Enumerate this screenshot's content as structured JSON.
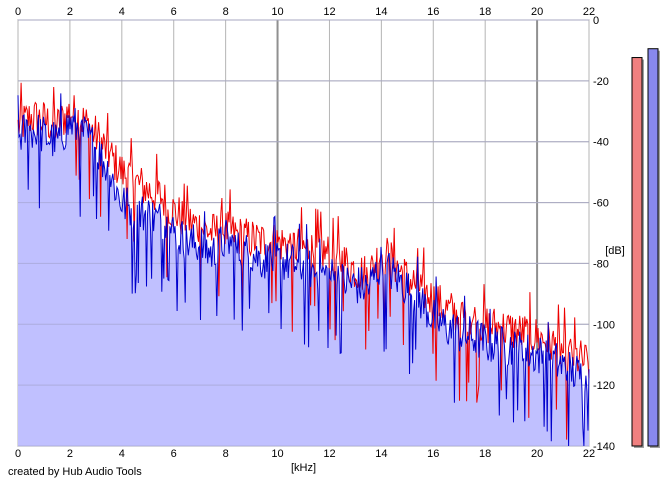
{
  "chart_data": {
    "type": "area",
    "xlabel": "[kHz]",
    "ylabel": "[dB]",
    "xlim": [
      0,
      22
    ],
    "ylim": [
      -140,
      0
    ],
    "x_ticks": [
      0,
      2,
      4,
      6,
      8,
      10,
      12,
      14,
      16,
      18,
      20,
      22
    ],
    "x_tick_labels": [
      "0",
      "2",
      "4",
      "6",
      "8",
      "10",
      "12",
      "14",
      "16",
      "18",
      "20",
      "22"
    ],
    "y_ticks": [
      0,
      -20,
      -40,
      -60,
      -80,
      -100,
      -120,
      -140
    ],
    "y_tick_labels": [
      "0",
      "-20",
      "-40",
      "-60",
      "-80",
      "-100",
      "-120",
      "-140"
    ],
    "grid": true,
    "fill_color": "#c0c0ff",
    "series": [
      {
        "color": "#ee0000",
        "x": [
          0.0,
          0.5,
          1.0,
          1.5,
          2.0,
          2.5,
          3.0,
          3.5,
          4.0,
          4.5,
          5.0,
          5.5,
          6.0,
          6.5,
          7.0,
          7.5,
          8.0,
          8.5,
          9.0,
          9.5,
          10.0,
          10.5,
          11.0,
          11.5,
          12.0,
          12.5,
          13.0,
          13.5,
          14.0,
          14.5,
          15.0,
          15.5,
          16.0,
          16.5,
          17.0,
          17.5,
          18.0,
          18.5,
          19.0,
          19.5,
          20.0,
          20.5,
          21.0,
          21.5,
          22.0
        ],
        "values": [
          -35,
          -32,
          -33,
          -35,
          -30,
          -33,
          -38,
          -44,
          -50,
          -53,
          -56,
          -58,
          -63,
          -66,
          -68,
          -70,
          -69,
          -71,
          -72,
          -73,
          -73,
          -74,
          -75,
          -76,
          -77,
          -79,
          -82,
          -84,
          -76,
          -80,
          -85,
          -88,
          -92,
          -95,
          -97,
          -98,
          -100,
          -101,
          -102,
          -103,
          -104,
          -106,
          -109,
          -111,
          -113
        ]
      },
      {
        "color": "#0000cc",
        "x": [
          0.0,
          0.5,
          1.0,
          1.5,
          2.0,
          2.5,
          3.0,
          3.5,
          4.0,
          4.5,
          5.0,
          5.5,
          6.0,
          6.5,
          7.0,
          7.5,
          8.0,
          8.5,
          9.0,
          9.5,
          10.0,
          10.5,
          11.0,
          11.5,
          12.0,
          12.5,
          13.0,
          13.5,
          14.0,
          14.5,
          15.0,
          15.5,
          16.0,
          16.5,
          17.0,
          17.5,
          18.0,
          18.5,
          19.0,
          19.5,
          20.0,
          20.5,
          21.0,
          21.5,
          22.0
        ],
        "values": [
          -38,
          -36,
          -38,
          -40,
          -34,
          -37,
          -42,
          -50,
          -60,
          -63,
          -64,
          -66,
          -70,
          -73,
          -74,
          -77,
          -72,
          -76,
          -77,
          -79,
          -79,
          -80,
          -81,
          -83,
          -84,
          -86,
          -87,
          -88,
          -80,
          -84,
          -88,
          -92,
          -98,
          -101,
          -103,
          -104,
          -106,
          -107,
          -108,
          -109,
          -110,
          -111,
          -114,
          -116,
          -118
        ]
      }
    ],
    "level_meters": [
      {
        "color": "#f08080",
        "level_db": -8
      },
      {
        "color": "#8888ee",
        "level_db": -5
      }
    ]
  },
  "credit_text": "created by Hub Audio Tools"
}
